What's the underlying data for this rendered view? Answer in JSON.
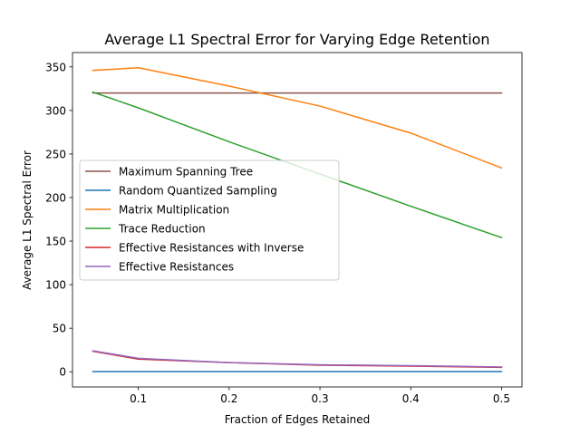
{
  "chart_data": {
    "type": "line",
    "title": "Average L1 Spectral Error for Varying Edge Retention",
    "xlabel": "Fraction of Edges Retained",
    "ylabel": "Average L1 Spectral Error",
    "x": [
      0.05,
      0.1,
      0.2,
      0.3,
      0.4,
      0.5
    ],
    "xlim": [
      0.0275,
      0.5225
    ],
    "ylim": [
      -17.45,
      366.45
    ],
    "xticks": [
      0.1,
      0.2,
      0.3,
      0.4,
      0.5
    ],
    "xtick_labels": [
      "0.1",
      "0.2",
      "0.3",
      "0.4",
      "0.5"
    ],
    "yticks": [
      0,
      50,
      100,
      150,
      200,
      250,
      300,
      350
    ],
    "ytick_labels": [
      "0",
      "50",
      "100",
      "150",
      "200",
      "250",
      "300",
      "350"
    ],
    "grid": false,
    "legend_position": "center-left",
    "series": [
      {
        "name": "Maximum Spanning Tree",
        "color": "#8c564b",
        "values": [
          320,
          320,
          320,
          320,
          320,
          320
        ]
      },
      {
        "name": "Random Quantized Sampling",
        "color": "#1f77b4",
        "values": [
          0.3,
          0.3,
          0.3,
          0.3,
          0.3,
          0.3
        ]
      },
      {
        "name": "Matrix Multiplication",
        "color": "#ff7f0e",
        "values": [
          346,
          349,
          328,
          305,
          274,
          234
        ]
      },
      {
        "name": "Trace Reduction",
        "color": "#2ca02c",
        "values": [
          321,
          303,
          264,
          227,
          190,
          154
        ]
      },
      {
        "name": "Effective Resistances with Inverse",
        "color": "#d62728",
        "values": [
          23.5,
          14.5,
          10.5,
          7.5,
          6.5,
          5
        ]
      },
      {
        "name": "Effective Resistances",
        "color": "#9467bd",
        "values": [
          24,
          15.5,
          10.5,
          8,
          7,
          5.5
        ]
      }
    ]
  }
}
